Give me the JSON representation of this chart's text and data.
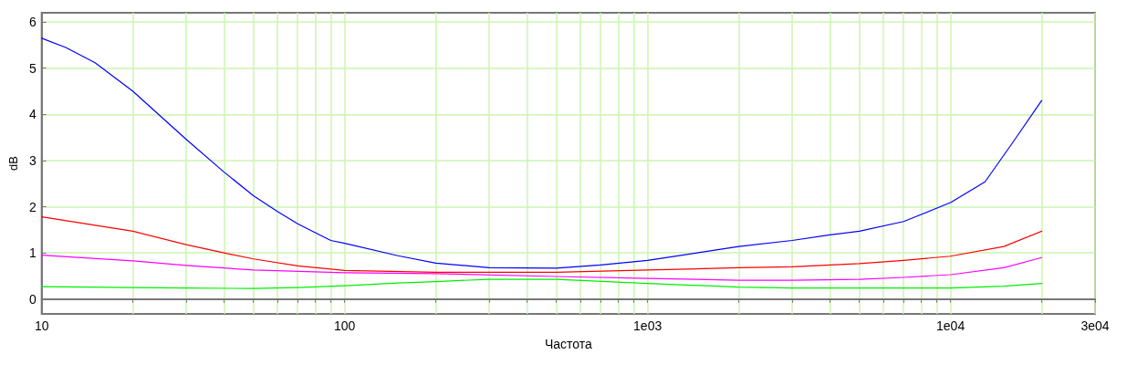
{
  "chart_data": {
    "type": "line",
    "xlabel": "Частота",
    "ylabel": "dB",
    "log": "x",
    "grid": true,
    "marker": "none",
    "line_style": "solid",
    "xlim": [
      10,
      30000
    ],
    "ylim": [
      -0.32,
      6.2
    ],
    "xticks": [
      10,
      {
        "value": 20,
        "label": null
      },
      {
        "value": 30,
        "label": null
      },
      {
        "value": 40,
        "label": null
      },
      {
        "value": 50,
        "label": null
      },
      {
        "value": 60,
        "label": null
      },
      {
        "value": 70,
        "label": null
      },
      {
        "value": 80,
        "label": null
      },
      {
        "value": 90,
        "label": null
      },
      100,
      {
        "value": 200,
        "label": null
      },
      {
        "value": 300,
        "label": null
      },
      {
        "value": 400,
        "label": null
      },
      {
        "value": 500,
        "label": null
      },
      {
        "value": 600,
        "label": null
      },
      {
        "value": 700,
        "label": null
      },
      {
        "value": 800,
        "label": null
      },
      {
        "value": 900,
        "label": null
      },
      {
        "value": 1000,
        "label": "1e03"
      },
      {
        "value": 2000,
        "label": null
      },
      {
        "value": 3000,
        "label": null
      },
      {
        "value": 4000,
        "label": null
      },
      {
        "value": 5000,
        "label": null
      },
      {
        "value": 6000,
        "label": null
      },
      {
        "value": 7000,
        "label": null
      },
      {
        "value": 8000,
        "label": null
      },
      {
        "value": 9000,
        "label": null
      },
      {
        "value": 10000,
        "label": "1e04"
      },
      {
        "value": 20000,
        "label": null
      },
      {
        "value": 30000,
        "label": "3e04"
      }
    ],
    "yticks": [
      0,
      1,
      2,
      3,
      4,
      5,
      6
    ],
    "series": [
      {
        "color": "#0000ff",
        "x": [
          10,
          12,
          15,
          20,
          30,
          40,
          50,
          60,
          70,
          80,
          90,
          100,
          150,
          200,
          300,
          500,
          700,
          1000,
          2000,
          3000,
          4000,
          5000,
          7000,
          10000,
          13000,
          16000,
          20000
        ],
        "values": [
          5.65,
          5.45,
          5.12,
          4.5,
          3.46,
          2.75,
          2.24,
          1.9,
          1.63,
          1.44,
          1.27,
          1.21,
          0.94,
          0.78,
          0.68,
          0.67,
          0.74,
          0.84,
          1.14,
          1.27,
          1.39,
          1.47,
          1.68,
          2.09,
          2.54,
          3.38,
          4.3
        ]
      },
      {
        "color": "#ff0000",
        "x": [
          10,
          20,
          30,
          40,
          50,
          70,
          100,
          200,
          500,
          1000,
          2000,
          3000,
          5000,
          7000,
          10000,
          15000,
          20000
        ],
        "values": [
          1.78,
          1.47,
          1.18,
          1.0,
          0.87,
          0.72,
          0.62,
          0.58,
          0.58,
          0.63,
          0.68,
          0.7,
          0.77,
          0.84,
          0.93,
          1.14,
          1.47
        ]
      },
      {
        "color": "#ff00ff",
        "x": [
          10,
          20,
          30,
          50,
          100,
          200,
          500,
          1000,
          2000,
          3000,
          5000,
          7000,
          10000,
          15000,
          20000
        ],
        "values": [
          0.95,
          0.83,
          0.73,
          0.63,
          0.57,
          0.55,
          0.49,
          0.45,
          0.41,
          0.41,
          0.43,
          0.47,
          0.53,
          0.68,
          0.9
        ]
      },
      {
        "color": "#00ee00",
        "x": [
          10,
          20,
          30,
          50,
          70,
          100,
          150,
          200,
          300,
          500,
          1000,
          2000,
          3000,
          5000,
          10000,
          15000,
          20000
        ],
        "values": [
          0.27,
          0.25,
          0.24,
          0.23,
          0.25,
          0.29,
          0.35,
          0.38,
          0.43,
          0.43,
          0.34,
          0.26,
          0.24,
          0.24,
          0.24,
          0.28,
          0.34
        ]
      }
    ]
  }
}
